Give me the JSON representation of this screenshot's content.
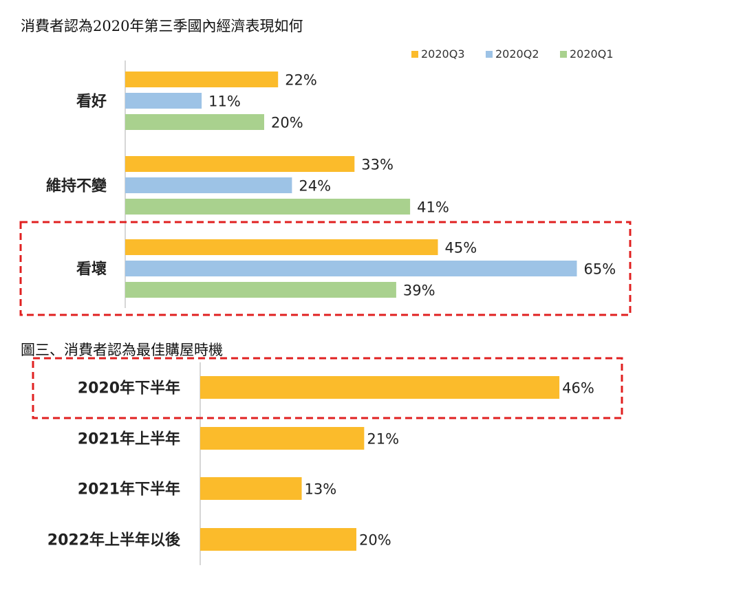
{
  "chart_data": [
    {
      "type": "bar",
      "orientation": "horizontal",
      "title": "消費者認為2020年第三季國內經濟表現如何",
      "categories": [
        "看好",
        "維持不變",
        "看壞"
      ],
      "series": [
        {
          "name": "2020Q3",
          "values": [
            22,
            33,
            45
          ],
          "color": "#FBBB2B"
        },
        {
          "name": "2020Q2",
          "values": [
            11,
            24,
            65
          ],
          "color": "#9DC3E6"
        },
        {
          "name": "2020Q1",
          "values": [
            20,
            41,
            39
          ],
          "color": "#A9D18E"
        }
      ],
      "value_labels": [
        [
          "22%",
          "33%",
          "45%"
        ],
        [
          "11%",
          "24%",
          "65%"
        ],
        [
          "20%",
          "41%",
          "39%"
        ]
      ],
      "unit": "%",
      "legend_position": "top-right",
      "highlighted_category": "看壞",
      "highlight_color": "#E02020"
    },
    {
      "type": "bar",
      "orientation": "horizontal",
      "title": "圖三、消費者認為最佳購屋時機",
      "categories": [
        "2020年下半年",
        "2021年上半年",
        "2021年下半年",
        "2022年上半年以後"
      ],
      "values": [
        46,
        21,
        13,
        20
      ],
      "value_labels": [
        "46%",
        "21%",
        "13%",
        "20%"
      ],
      "color": "#FBBB2B",
      "unit": "%",
      "highlighted_category": "2020年下半年",
      "highlight_color": "#E02020"
    }
  ]
}
